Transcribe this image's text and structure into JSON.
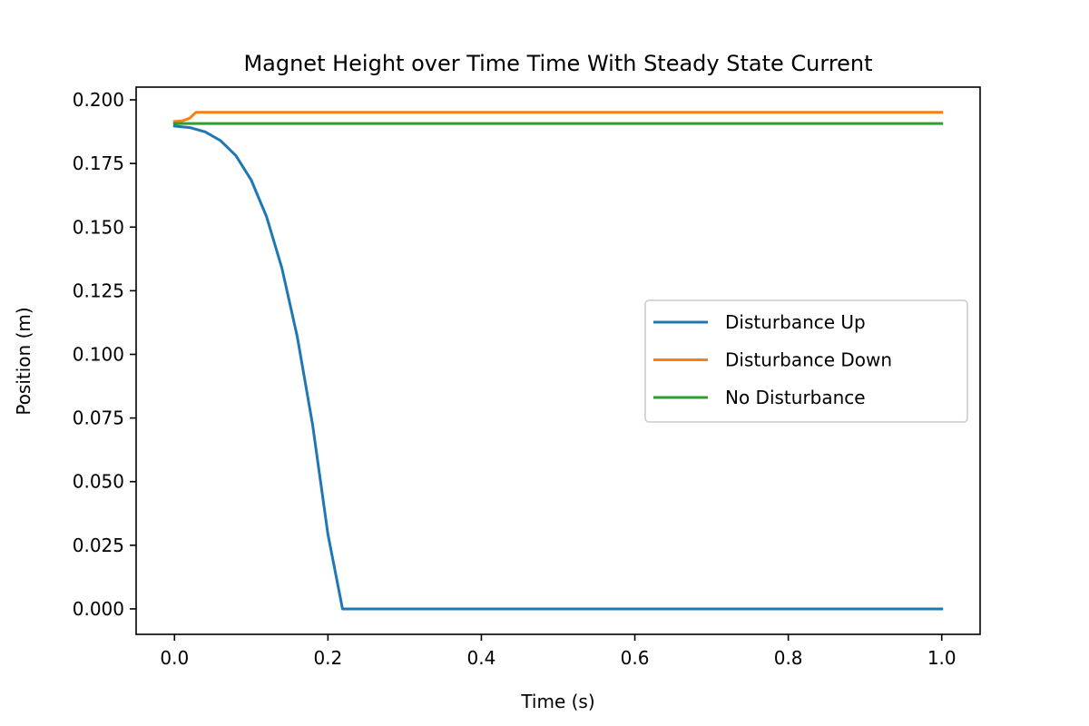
{
  "chart_data": {
    "type": "line",
    "title": "Magnet Height over Time Time With Steady State Current",
    "xlabel": "Time (s)",
    "ylabel": "Position (m)",
    "xlim": [
      -0.05,
      1.05
    ],
    "ylim": [
      -0.01,
      0.205
    ],
    "xticks": [
      0.0,
      0.2,
      0.4,
      0.6,
      0.8,
      1.0
    ],
    "xtick_labels": [
      "0.0",
      "0.2",
      "0.4",
      "0.6",
      "0.8",
      "1.0"
    ],
    "yticks": [
      0.0,
      0.025,
      0.05,
      0.075,
      0.1,
      0.125,
      0.15,
      0.175,
      0.2
    ],
    "ytick_labels": [
      "0.000",
      "0.025",
      "0.050",
      "0.075",
      "0.100",
      "0.125",
      "0.150",
      "0.175",
      "0.200"
    ],
    "grid": false,
    "legend_position": "center-right",
    "series": [
      {
        "name": "Disturbance Up",
        "color": "#1f77b4",
        "x": [
          0.0,
          0.02,
          0.04,
          0.06,
          0.08,
          0.1,
          0.12,
          0.14,
          0.16,
          0.18,
          0.2,
          0.219,
          0.22,
          1.0
        ],
        "y": [
          0.1897,
          0.1891,
          0.1874,
          0.184,
          0.1781,
          0.1685,
          0.1541,
          0.1339,
          0.107,
          0.0724,
          0.0293,
          0.0,
          0.0,
          0.0
        ]
      },
      {
        "name": "Disturbance Down",
        "color": "#ff7f0e",
        "x": [
          0.0,
          0.01,
          0.02,
          0.028,
          1.0
        ],
        "y": [
          0.1915,
          0.1917,
          0.1928,
          0.1951,
          0.1951
        ]
      },
      {
        "name": "No Disturbance",
        "color": "#2ca02c",
        "x": [
          0.0,
          1.0
        ],
        "y": [
          0.1907,
          0.1907
        ]
      }
    ]
  }
}
